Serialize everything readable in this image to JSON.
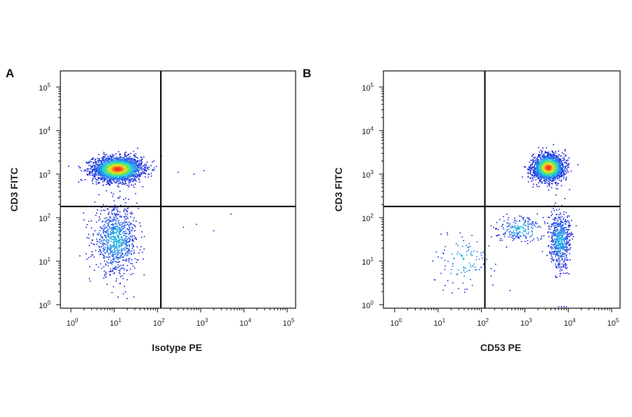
{
  "chart_data": [
    {
      "type": "scatter",
      "subtype": "flow-cytometry-density-dot-plot",
      "panel_label": "A",
      "xlabel": "Isotype PE",
      "ylabel": "CD3 FITC",
      "xscale": "log",
      "yscale": "log",
      "xlim": [
        0.5,
        150000
      ],
      "ylim": [
        0.8,
        200000
      ],
      "x_ticks": [
        "10^0",
        "10^1",
        "10^2",
        "10^3",
        "10^4",
        "10^5"
      ],
      "y_ticks": [
        "10^0",
        "10^1",
        "10^2",
        "10^3",
        "10^4",
        "10^5"
      ],
      "quadrant_gate": {
        "x": 120,
        "y": 180
      },
      "grid": false,
      "legend": "none",
      "populations": [
        {
          "center": [
            12,
            1300
          ],
          "spread": [
            0.28,
            0.14
          ],
          "events": 2600,
          "core_color": "#e0301e"
        },
        {
          "center": [
            11,
            30
          ],
          "spread": [
            0.25,
            0.38
          ],
          "events": 900,
          "core_color": "#2233cc"
        }
      ],
      "scattered_events": [
        [
          300,
          1100
        ],
        [
          700,
          1000
        ],
        [
          1200,
          1200
        ],
        [
          5000,
          120
        ],
        [
          2000,
          50
        ],
        [
          400,
          60
        ],
        [
          800,
          70
        ]
      ]
    },
    {
      "type": "scatter",
      "subtype": "flow-cytometry-density-dot-plot",
      "panel_label": "B",
      "xlabel": "CD53 PE",
      "ylabel": "CD3 FITC",
      "xscale": "log",
      "yscale": "log",
      "xlim": [
        0.5,
        150000
      ],
      "ylim": [
        0.8,
        200000
      ],
      "x_ticks": [
        "10^0",
        "10^1",
        "10^2",
        "10^3",
        "10^4",
        "10^5"
      ],
      "y_ticks": [
        "10^0",
        "10^1",
        "10^2",
        "10^3",
        "10^4",
        "10^5"
      ],
      "quadrant_gate": {
        "x": 120,
        "y": 180
      },
      "grid": false,
      "legend": "none",
      "populations": [
        {
          "center": [
            3500,
            1400
          ],
          "spread": [
            0.18,
            0.15
          ],
          "events": 2000,
          "core_color": "#e0301e"
        },
        {
          "center": [
            6500,
            30
          ],
          "spread": [
            0.12,
            0.32
          ],
          "events": 600,
          "core_color": "#2233cc"
        },
        {
          "center": [
            800,
            55
          ],
          "spread": [
            0.3,
            0.15
          ],
          "events": 220,
          "core_color": "#2233cc"
        },
        {
          "center": [
            40,
            10
          ],
          "spread": [
            0.35,
            0.35
          ],
          "events": 120,
          "core_color": "#2233cc"
        }
      ],
      "scattered_events": [
        [
          7000,
          0.9
        ],
        [
          8000,
          0.9
        ],
        [
          9000,
          0.9
        ],
        [
          6000,
          0.9
        ],
        [
          300,
          30
        ],
        [
          200,
          6
        ]
      ]
    }
  ],
  "colors": {
    "density_low": "#1a1adb",
    "density_mid": "#1fd0e0",
    "density_midhigh": "#7fe83a",
    "density_high": "#ff2a1a",
    "axes": "#111111"
  }
}
